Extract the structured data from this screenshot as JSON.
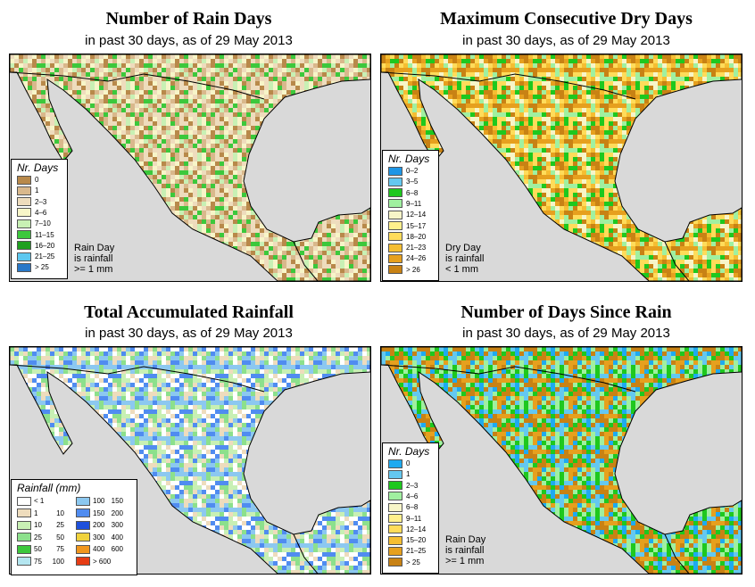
{
  "colors": {
    "water": "#d9d9d9",
    "land_blank": "#ffffff"
  },
  "panels": [
    {
      "id": "rain_days",
      "title": "Number of Rain Days",
      "subtitle": "in past 30 days, as of  29 May 2013",
      "legend_title": "Nr. Days",
      "legend": [
        {
          "label": "0",
          "color": "#b8894a"
        },
        {
          "label": "1",
          "color": "#d9b88c"
        },
        {
          "label": "2–3",
          "color": "#eedcbd"
        },
        {
          "label": "4–6",
          "color": "#f7f5c8"
        },
        {
          "label": "7–10",
          "color": "#c8f0b4"
        },
        {
          "label": "11–15",
          "color": "#3cc83c"
        },
        {
          "label": "16–20",
          "color": "#1fa01f"
        },
        {
          "label": "21–25",
          "color": "#5cc8f0"
        },
        {
          "label": "> 25",
          "color": "#2878c8"
        }
      ],
      "note": [
        "Rain Day",
        "is rainfall",
        ">= 1 mm"
      ]
    },
    {
      "id": "dry_days",
      "title": "Maximum Consecutive Dry Days",
      "subtitle": "in past 30 days, as of  29 May 2013",
      "legend_title": "Nr. Days",
      "legend": [
        {
          "label": "0–2",
          "color": "#1e96e6"
        },
        {
          "label": "3–5",
          "color": "#64c8f0"
        },
        {
          "label": "6–8",
          "color": "#1ec81e"
        },
        {
          "label": "9–11",
          "color": "#a0f0a0"
        },
        {
          "label": "12–14",
          "color": "#f7f5c8"
        },
        {
          "label": "15–17",
          "color": "#fff08c"
        },
        {
          "label": "18–20",
          "color": "#ffdc5a"
        },
        {
          "label": "21–23",
          "color": "#f5be32"
        },
        {
          "label": "24–26",
          "color": "#e6a01e"
        },
        {
          "label": "> 26",
          "color": "#c88214"
        }
      ],
      "note": [
        "Dry Day",
        "is rainfall",
        "< 1 mm"
      ]
    },
    {
      "id": "rainfall",
      "title": "Total Accumulated Rainfall",
      "subtitle": "in past 30 days, as of  29 May 2013",
      "legend_title": "Rainfall (mm)",
      "legend_left": [
        {
          "lo": "< 1",
          "hi": "",
          "color": "#ffffff"
        },
        {
          "lo": "1",
          "hi": "10",
          "color": "#eedcbd"
        },
        {
          "lo": "10",
          "hi": "25",
          "color": "#c8f0b4"
        },
        {
          "lo": "25",
          "hi": "50",
          "color": "#8ce08c"
        },
        {
          "lo": "50",
          "hi": "75",
          "color": "#3cc83c"
        },
        {
          "lo": "75",
          "hi": "100",
          "color": "#b4e6f0"
        }
      ],
      "legend_right": [
        {
          "lo": "100",
          "hi": "150",
          "color": "#8cc8f0"
        },
        {
          "lo": "150",
          "hi": "200",
          "color": "#508cf0"
        },
        {
          "lo": "200",
          "hi": "300",
          "color": "#1e50dc"
        },
        {
          "lo": "300",
          "hi": "400",
          "color": "#f0d23c"
        },
        {
          "lo": "400",
          "hi": "600",
          "color": "#f0961e"
        },
        {
          "lo": "> 600",
          "hi": "",
          "color": "#e63c14"
        }
      ]
    },
    {
      "id": "since_rain",
      "title": "Number of Days Since Rain",
      "subtitle": "in past 30 days, as of  29 May 2013",
      "legend_title": "Nr. Days",
      "legend": [
        {
          "label": "0",
          "color": "#1eaaf0"
        },
        {
          "label": "1",
          "color": "#64c8f0"
        },
        {
          "label": "2–3",
          "color": "#1ec81e"
        },
        {
          "label": "4–6",
          "color": "#a0f0a0"
        },
        {
          "label": "6–8",
          "color": "#f7f5c8"
        },
        {
          "label": "9–11",
          "color": "#fff08c"
        },
        {
          "label": "12–14",
          "color": "#ffdc5a"
        },
        {
          "label": "15–20",
          "color": "#f5be32"
        },
        {
          "label": "21–25",
          "color": "#e6a01e"
        },
        {
          "label": "> 25",
          "color": "#c88214"
        }
      ],
      "note": [
        "Rain Day",
        "is rainfall",
        ">= 1 mm"
      ]
    }
  ]
}
